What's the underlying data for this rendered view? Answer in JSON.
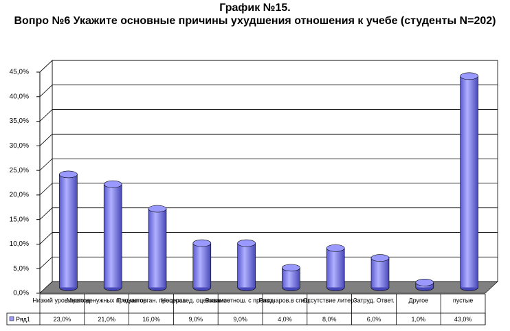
{
  "chart_data": {
    "type": "bar3d",
    "title": "График №15.",
    "subtitle": "Вопро №6 Укажите основные причины ухудшения отношения к учебе (студенты N=202)",
    "categories": [
      "Низкий уров.препод.",
      "Много ненужных предметов",
      "Плохая орган. процесса",
      "Несправед. оценивание",
      "Взаимоотнош. с препод.",
      "Разочаров.в спец.",
      "Отсутствие литер.",
      "Затруд. Ответ.",
      "Другое",
      "пустые"
    ],
    "series": [
      {
        "name": "Ряд1",
        "color": "#9999ff",
        "values": [
          23,
          21,
          16,
          9,
          9,
          4,
          8,
          6,
          1,
          43
        ],
        "value_labels": [
          "23,0%",
          "21,0%",
          "16,0%",
          "9,0%",
          "9,0%",
          "4,0%",
          "8,0%",
          "6,0%",
          "1,0%",
          "43,0%"
        ]
      }
    ],
    "ylim": [
      0,
      45
    ],
    "yticks": [
      {
        "value": 0,
        "label": "0,0%"
      },
      {
        "value": 5,
        "label": "5,0%"
      },
      {
        "value": 10,
        "label": "10,0%"
      },
      {
        "value": 15,
        "label": "15,0%"
      },
      {
        "value": 20,
        "label": "20,0%"
      },
      {
        "value": 25,
        "label": "25,0%"
      },
      {
        "value": 30,
        "label": "30,0%"
      },
      {
        "value": 35,
        "label": "35,0%"
      },
      {
        "value": 40,
        "label": "40,0%"
      },
      {
        "value": 45,
        "label": "45,0%"
      }
    ],
    "grid": true
  }
}
